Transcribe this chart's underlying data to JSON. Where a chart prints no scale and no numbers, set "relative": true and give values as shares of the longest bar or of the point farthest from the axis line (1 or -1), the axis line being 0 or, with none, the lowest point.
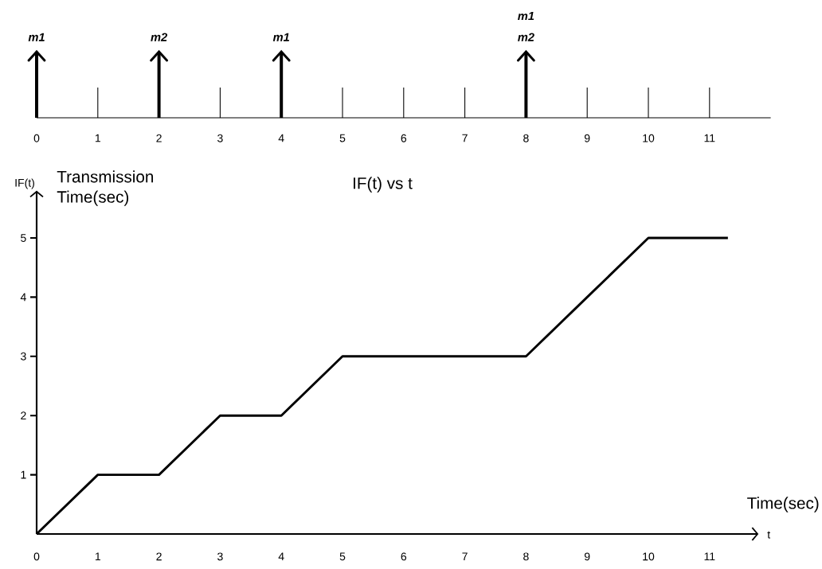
{
  "chart_data": [
    {
      "type": "bar",
      "relative": true,
      "xlim": [
        0,
        12
      ],
      "xticks": [
        0,
        1,
        2,
        3,
        4,
        5,
        6,
        7,
        8,
        9,
        10,
        11
      ],
      "x": [
        0,
        2,
        4,
        8
      ],
      "values": [
        1,
        1,
        1,
        1
      ],
      "color": "#000000",
      "annotations": [
        "m1",
        "m2",
        "m1",
        "m1 m2"
      ]
    },
    {
      "type": "line",
      "title": "IF(t) vs t",
      "xlabel": "Time(sec)",
      "ylabel": "Transmission Time(sec)",
      "annotations": [
        "IF(t)",
        "t"
      ],
      "x": [
        0,
        1,
        2,
        3,
        4,
        5,
        8,
        9,
        10,
        11.3
      ],
      "values": [
        0,
        1,
        1,
        2,
        2,
        3,
        3,
        4,
        5,
        5
      ],
      "color": "#000000",
      "xlim": [
        0,
        11.8
      ],
      "ylim": [
        0,
        5.8
      ],
      "xticks": [
        0,
        1,
        2,
        3,
        4,
        5,
        6,
        7,
        8,
        9,
        10,
        11
      ],
      "yticks": [
        1,
        2,
        3,
        4,
        5
      ]
    }
  ]
}
